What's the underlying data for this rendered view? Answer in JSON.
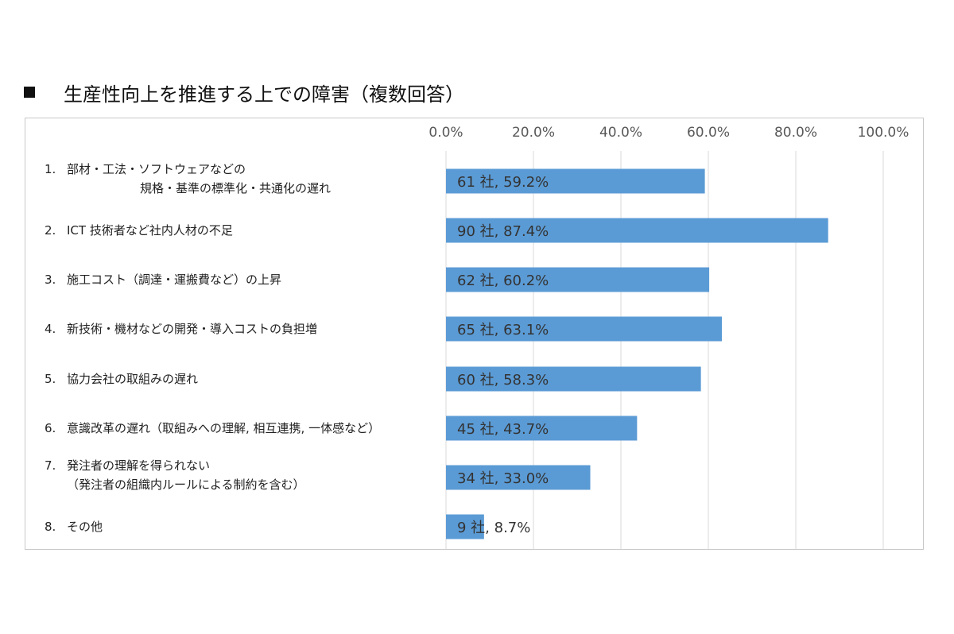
{
  "title": "生産性向上を推進する上での障害（複数回答）",
  "chart_data": {
    "type": "bar",
    "orientation": "horizontal",
    "title": "生産性向上を推進する上での障害（複数回答）",
    "xlim": [
      0,
      100
    ],
    "ticks": [
      "0.0%",
      "20.0%",
      "40.0%",
      "60.0%",
      "80.0%",
      "100.0%"
    ],
    "tick_values": [
      0,
      20,
      40,
      60,
      80,
      100
    ],
    "grid": true,
    "bar_color": "#5b9bd5",
    "categories": [
      {
        "num": "1.",
        "line1": "部材・工法・ソフトウェアなどの",
        "line2": "規格・基準の標準化・共通化の遅れ",
        "count": "61 社",
        "pct": "59.2%",
        "value": 59.2
      },
      {
        "num": "2.",
        "line1": "ICT 技術者など社内人材の不足",
        "line2": "",
        "count": "90 社",
        "pct": "87.4%",
        "value": 87.4
      },
      {
        "num": "3.",
        "line1": "施工コスト（調達・運搬費など）の上昇",
        "line2": "",
        "count": "62 社",
        "pct": "60.2%",
        "value": 60.2
      },
      {
        "num": "4.",
        "line1": "新技術・機材などの開発・導入コストの負担増",
        "line2": "",
        "count": "65 社",
        "pct": "63.1%",
        "value": 63.1
      },
      {
        "num": "5.",
        "line1": "協力会社の取組みの遅れ",
        "line2": "",
        "count": "60 社",
        "pct": "58.3%",
        "value": 58.3
      },
      {
        "num": "6.",
        "line1": "意識改革の遅れ（取組みへの理解, 相互連携, 一体感など）",
        "line2": "",
        "count": "45 社",
        "pct": "43.7%",
        "value": 43.7
      },
      {
        "num": "7.",
        "line1": "発注者の理解を得られない",
        "line2": "（発注者の組織内ルールによる制約を含む）",
        "count": "34 社",
        "pct": "33.0%",
        "value": 33.0
      },
      {
        "num": "8.",
        "line1": "その他",
        "line2": "",
        "count": "9 社",
        "pct": "8.7%",
        "value": 8.7
      }
    ]
  }
}
